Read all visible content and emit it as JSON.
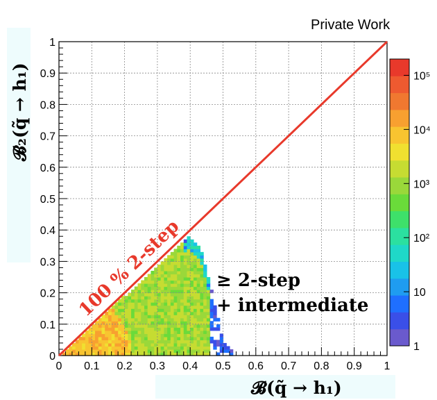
{
  "corner_label": "Private Work",
  "annotations": {
    "diagonal": "100 % 2-step",
    "region_line1": "≥ 2-step",
    "region_line2": "+ intermediate"
  },
  "chart_data": {
    "type": "heatmap",
    "title": "",
    "xlabel": "𝓑(q̃ → h₁)",
    "ylabel": "𝓑₂(q̃ → h₁)",
    "xlim": [
      0,
      1
    ],
    "ylim": [
      0,
      1
    ],
    "x_ticks": [
      "0",
      "0.1",
      "0.2",
      "0.3",
      "0.4",
      "0.5",
      "0.6",
      "0.7",
      "0.8",
      "0.9",
      "1"
    ],
    "y_ticks": [
      "0",
      "0.1",
      "0.2",
      "0.3",
      "0.4",
      "0.5",
      "0.6",
      "0.7",
      "0.8",
      "0.9",
      "1"
    ],
    "grid": true,
    "colorbar": {
      "scale": "log",
      "range": [
        1,
        200000
      ],
      "tick_labels": [
        "1",
        "10",
        "10²",
        "10³",
        "10⁴",
        "10⁵"
      ],
      "tick_values": [
        1,
        10,
        100,
        1000,
        10000,
        100000
      ]
    },
    "diagonal_line": {
      "from": [
        0,
        0
      ],
      "to": [
        1,
        1
      ],
      "color": "#e8392b"
    },
    "populated_region": {
      "description_values": {
        "x_range": [
          0,
          0.55
        ],
        "y_max_at_x": [
          [
            0.0,
            0.0
          ],
          [
            0.4,
            0.38
          ],
          [
            0.43,
            0.35
          ],
          [
            0.45,
            0.27
          ],
          [
            0.47,
            0.2
          ],
          [
            0.5,
            0.05
          ],
          [
            0.55,
            0.0
          ]
        ]
      },
      "typical_counts": {
        "near_origin": 10000,
        "interior": 1000,
        "edge": 10
      }
    }
  }
}
